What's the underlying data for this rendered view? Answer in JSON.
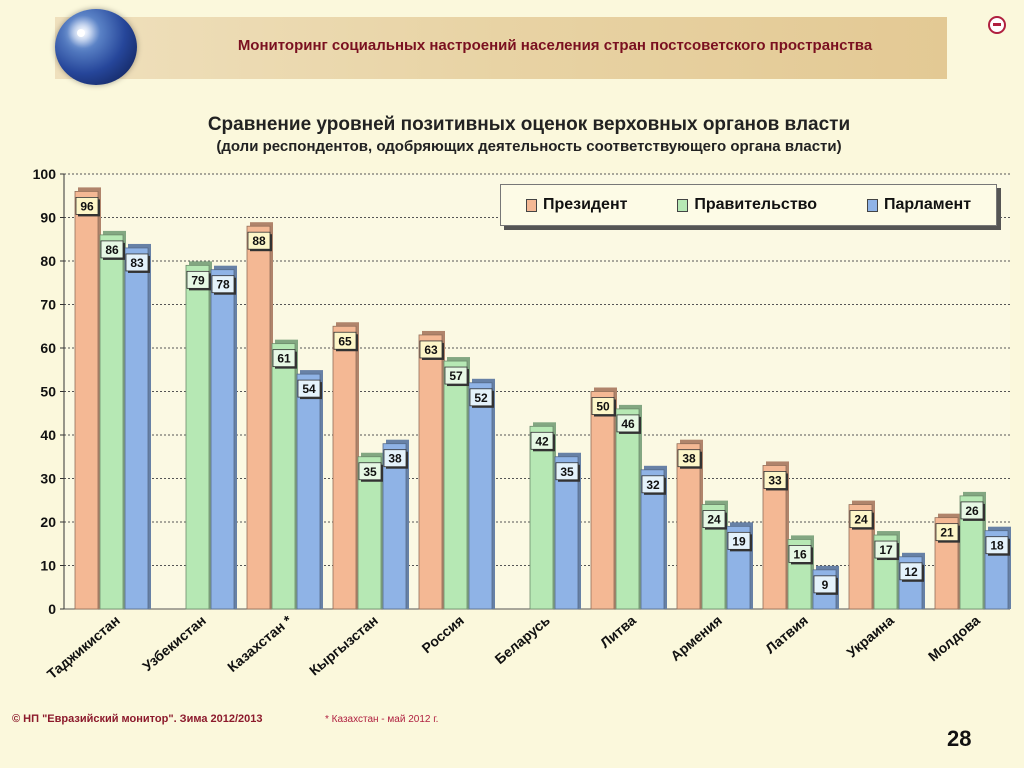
{
  "header": {
    "title": "Мониторинг социальных настроений населения стран постсоветского пространства"
  },
  "colors": {
    "president": "#f4b894",
    "government": "#b6e8b4",
    "parliament": "#8fb3e6",
    "background": "#fbf8dc",
    "accent": "#7a1020"
  },
  "chart_data": {
    "type": "bar",
    "title": "Сравнение уровней позитивных оценок верховных органов власти",
    "subtitle": "(доли респондентов, одобряющих деятельность соответствующего органа власти)",
    "categories": [
      "Таджикистан",
      "Узбекистан",
      "Казахстан *",
      "Кыргызстан",
      "Россия",
      "Беларусь",
      "Литва",
      "Армения",
      "Латвия",
      "Украина",
      "Молдова"
    ],
    "series": [
      {
        "name": "Президент",
        "values": [
          96,
          null,
          88,
          65,
          63,
          null,
          50,
          38,
          33,
          24,
          21
        ]
      },
      {
        "name": "Правительство",
        "values": [
          86,
          79,
          61,
          35,
          57,
          42,
          46,
          24,
          16,
          17,
          26
        ]
      },
      {
        "name": "Парламент",
        "values": [
          83,
          78,
          54,
          38,
          52,
          35,
          32,
          19,
          9,
          12,
          18
        ]
      }
    ],
    "ylim": [
      0,
      100
    ],
    "yticks": [
      0,
      10,
      20,
      30,
      40,
      50,
      60,
      70,
      80,
      90,
      100
    ],
    "grid": true,
    "legend": "top-right",
    "xlabel": "",
    "ylabel": ""
  },
  "footer": {
    "copyright": "© НП \"Евразийский монитор\". Зима 2012/2013",
    "note": "* Казахстан - май 2012 г.",
    "page_number": "28"
  }
}
